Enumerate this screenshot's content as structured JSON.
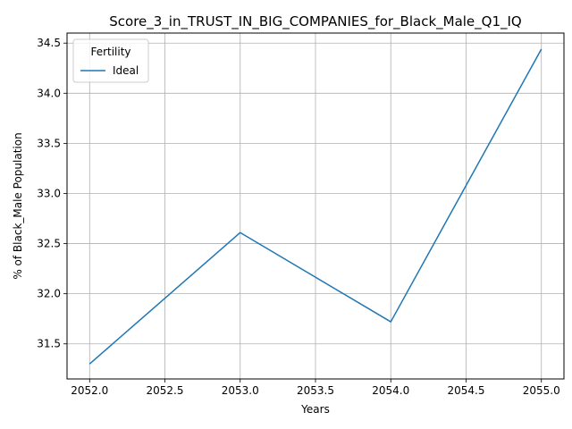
{
  "chart_data": {
    "type": "line",
    "title": "Score_3_in_TRUST_IN_BIG_COMPANIES_for_Black_Male_Q1_IQ",
    "xlabel": "Years",
    "ylabel": "% of Black_Male Population",
    "x": [
      2052,
      2053,
      2054,
      2055
    ],
    "series": [
      {
        "name": "Ideal",
        "values": [
          31.3,
          32.61,
          31.72,
          34.44
        ],
        "color": "#1f77b4"
      }
    ],
    "xlim": [
      2051.85,
      2055.15
    ],
    "ylim": [
      31.15,
      34.6
    ],
    "xticks": [
      2052.0,
      2052.5,
      2053.0,
      2053.5,
      2054.0,
      2054.5,
      2055.0
    ],
    "xtick_labels": [
      "2052.0",
      "2052.5",
      "2053.0",
      "2053.5",
      "2054.0",
      "2054.5",
      "2055.0"
    ],
    "yticks": [
      31.5,
      32.0,
      32.5,
      33.0,
      33.5,
      34.0,
      34.5
    ],
    "ytick_labels": [
      "31.5",
      "32.0",
      "32.5",
      "33.0",
      "33.5",
      "34.0",
      "34.5"
    ],
    "grid": true,
    "legend": {
      "title": "Fertility",
      "placement": "upper-left"
    }
  }
}
